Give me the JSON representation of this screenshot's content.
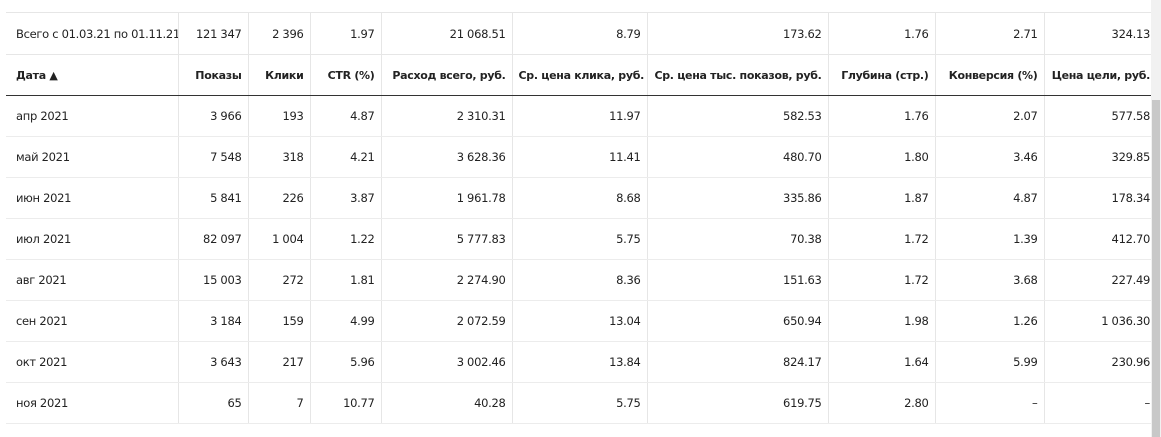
{
  "table": {
    "total": [
      "Всего с 01.03.21 по 01.11.21",
      "121 347",
      "2 396",
      "1.97",
      "21 068.51",
      "8.79",
      "173.62",
      "1.76",
      "2.71",
      "324.13"
    ],
    "header": [
      "Дата ▲",
      "Показы",
      "Клики",
      "CTR (%)",
      "Расход всего, руб.",
      "Ср. цена клика, руб.",
      "Ср. цена тыс. показов, руб.",
      "Глубина (стр.)",
      "Конверсия (%)",
      "Цена цели, руб."
    ],
    "rows": [
      [
        "апр 2021",
        "3 966",
        "193",
        "4.87",
        "2 310.31",
        "11.97",
        "582.53",
        "1.76",
        "2.07",
        "577.58"
      ],
      [
        "май 2021",
        "7 548",
        "318",
        "4.21",
        "3 628.36",
        "11.41",
        "480.70",
        "1.80",
        "3.46",
        "329.85"
      ],
      [
        "июн 2021",
        "5 841",
        "226",
        "3.87",
        "1 961.78",
        "8.68",
        "335.86",
        "1.87",
        "4.87",
        "178.34"
      ],
      [
        "июл 2021",
        "82 097",
        "1 004",
        "1.22",
        "5 777.83",
        "5.75",
        "70.38",
        "1.72",
        "1.39",
        "412.70"
      ],
      [
        "авг 2021",
        "15 003",
        "272",
        "1.81",
        "2 274.90",
        "8.36",
        "151.63",
        "1.72",
        "3.68",
        "227.49"
      ],
      [
        "сен 2021",
        "3 184",
        "159",
        "4.99",
        "2 072.59",
        "13.04",
        "650.94",
        "1.98",
        "1.26",
        "1 036.30"
      ],
      [
        "окт 2021",
        "3 643",
        "217",
        "5.96",
        "3 002.46",
        "13.84",
        "824.17",
        "1.64",
        "5.99",
        "230.96"
      ],
      [
        "ноя 2021",
        "65",
        "7",
        "10.77",
        "40.28",
        "5.75",
        "619.75",
        "2.80",
        "–",
        "–"
      ]
    ]
  }
}
